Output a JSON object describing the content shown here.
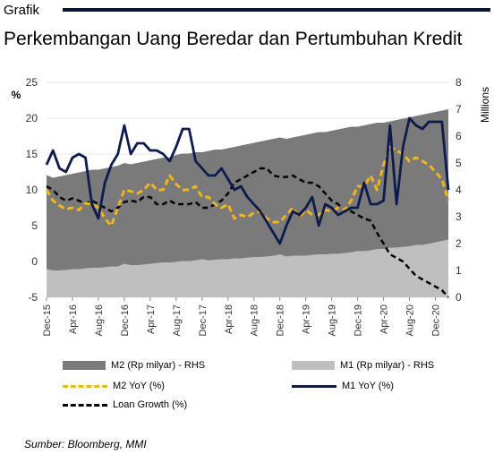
{
  "header": {
    "label": "Grafik",
    "title": "Perkembangan Uang Beredar dan Pertumbuhan Kredit"
  },
  "source": "Sumber: Bloomberg, MMI",
  "colors": {
    "m2_area": "#7a7a7a",
    "m1_area": "#bfbfbf",
    "m2_yoy": "#f0b51e",
    "m1_yoy": "#0e1b4d",
    "loan": "#000000",
    "header_bar": "#0b1433"
  },
  "chart_data": {
    "type": "area",
    "x_tick_labels": [
      "Dec-15",
      "Apr-16",
      "Aug-16",
      "Dec-16",
      "Apr-17",
      "Aug-17",
      "Dec-17",
      "Apr-18",
      "Aug-18",
      "Dec-18",
      "Apr-19",
      "Aug-19",
      "Dec-19",
      "Apr-20",
      "Aug-20",
      "Dec-20"
    ],
    "y_left": {
      "ylim": [
        -5,
        25
      ],
      "ticks": [
        -5,
        0,
        5,
        10,
        15,
        20,
        25
      ],
      "label": "%"
    },
    "y_right": {
      "ylim": [
        0,
        8
      ],
      "ticks": [
        0,
        1,
        2,
        3,
        4,
        5,
        6,
        7,
        8
      ],
      "label": "Millions"
    },
    "legend": [
      "M2 (Rp milyar) - RHS",
      "M1 (Rp milyar) - RHS",
      "M2 YoY (%)",
      "M1 YoY (%)",
      "Loan Growth (%)"
    ],
    "series": [
      {
        "name": "M2 (Rp milyar) - RHS",
        "axis": "right",
        "values": [
          4.55,
          4.45,
          4.5,
          4.55,
          4.6,
          4.65,
          4.7,
          4.75,
          4.75,
          4.8,
          4.85,
          4.9,
          5.0,
          4.95,
          5.0,
          5.05,
          5.1,
          5.15,
          5.2,
          5.2,
          5.3,
          5.35,
          5.35,
          5.4,
          5.4,
          5.45,
          5.5,
          5.5,
          5.55,
          5.6,
          5.65,
          5.7,
          5.75,
          5.8,
          5.85,
          5.9,
          5.95,
          5.9,
          5.95,
          6.0,
          6.05,
          6.1,
          6.15,
          6.15,
          6.2,
          6.25,
          6.3,
          6.35,
          6.35,
          6.4,
          6.45,
          6.5,
          6.5,
          6.55,
          6.6,
          6.65,
          6.7,
          6.75,
          6.8,
          6.85,
          6.9,
          6.95,
          7.0
        ]
      },
      {
        "name": "M1 (Rp milyar) - RHS",
        "axis": "right",
        "values": [
          1.05,
          1.0,
          1.0,
          1.02,
          1.05,
          1.05,
          1.08,
          1.1,
          1.1,
          1.12,
          1.15,
          1.15,
          1.25,
          1.2,
          1.2,
          1.22,
          1.25,
          1.28,
          1.3,
          1.3,
          1.32,
          1.35,
          1.35,
          1.38,
          1.42,
          1.38,
          1.4,
          1.42,
          1.42,
          1.45,
          1.45,
          1.48,
          1.5,
          1.5,
          1.52,
          1.55,
          1.6,
          1.52,
          1.55,
          1.55,
          1.55,
          1.58,
          1.6,
          1.6,
          1.62,
          1.62,
          1.65,
          1.68,
          1.72,
          1.72,
          1.75,
          1.8,
          1.8,
          1.85,
          1.85,
          1.88,
          1.9,
          1.95,
          1.95,
          2.0,
          2.05,
          2.1,
          2.15
        ]
      },
      {
        "name": "M2 YoY (%)",
        "axis": "left",
        "values": [
          10.0,
          8.5,
          7.8,
          7.3,
          7.5,
          7.2,
          8.1,
          8.0,
          7.5,
          6.0,
          5.0,
          7.5,
          10.0,
          9.8,
          9.5,
          10.0,
          11.0,
          10.0,
          10.0,
          12.0,
          10.8,
          10.0,
          10.0,
          10.5,
          9.0,
          9.0,
          8.0,
          7.5,
          8.0,
          6.0,
          6.5,
          6.2,
          6.8,
          7.0,
          6.0,
          5.5,
          5.5,
          6.5,
          7.5,
          6.2,
          7.2,
          6.5,
          6.5,
          7.2,
          7.0,
          7.5,
          7.2,
          8.5,
          10.5,
          10.5,
          12.0,
          10.0,
          13.5,
          16.0,
          15.5,
          15.0,
          14.0,
          14.5,
          14.0,
          13.5,
          12.5,
          11.5,
          8.5
        ]
      },
      {
        "name": "M1 YoY (%)",
        "axis": "left",
        "values": [
          13.5,
          15.5,
          13.0,
          12.5,
          14.5,
          15.0,
          14.5,
          8.0,
          6.0,
          11.0,
          13.5,
          15.0,
          19.0,
          15.0,
          16.5,
          16.5,
          15.5,
          15.5,
          15.0,
          14.0,
          16.0,
          18.5,
          18.5,
          14.0,
          13.0,
          12.0,
          12.0,
          13.0,
          11.5,
          10.0,
          10.5,
          9.0,
          8.0,
          7.0,
          5.5,
          4.0,
          2.5,
          5.0,
          7.0,
          6.5,
          7.5,
          9.0,
          5.0,
          8.0,
          7.5,
          6.5,
          7.0,
          7.5,
          7.5,
          11.0,
          8.0,
          8.0,
          8.5,
          19.0,
          8.0,
          16.0,
          20.0,
          19.0,
          18.5,
          19.5,
          19.5,
          19.5,
          10.0
        ]
      },
      {
        "name": "Loan Growth (%)",
        "axis": "left",
        "values": [
          10.5,
          10.0,
          9.0,
          8.5,
          8.8,
          8.5,
          8.0,
          8.5,
          8.0,
          7.5,
          7.0,
          7.5,
          8.3,
          8.5,
          8.3,
          9.0,
          9.0,
          8.0,
          8.0,
          8.5,
          8.0,
          8.0,
          8.0,
          8.3,
          7.5,
          7.5,
          8.0,
          8.5,
          9.5,
          11.0,
          11.5,
          12.0,
          12.5,
          13.0,
          13.0,
          12.0,
          11.8,
          11.8,
          12.0,
          11.5,
          11.0,
          11.0,
          10.5,
          9.5,
          8.5,
          8.0,
          7.0,
          7.0,
          6.5,
          6.0,
          5.7,
          4.0,
          2.5,
          1.0,
          0.5,
          0.0,
          -1.0,
          -2.0,
          -2.5,
          -3.0,
          -3.5,
          -4.0,
          -5.0
        ]
      }
    ]
  }
}
